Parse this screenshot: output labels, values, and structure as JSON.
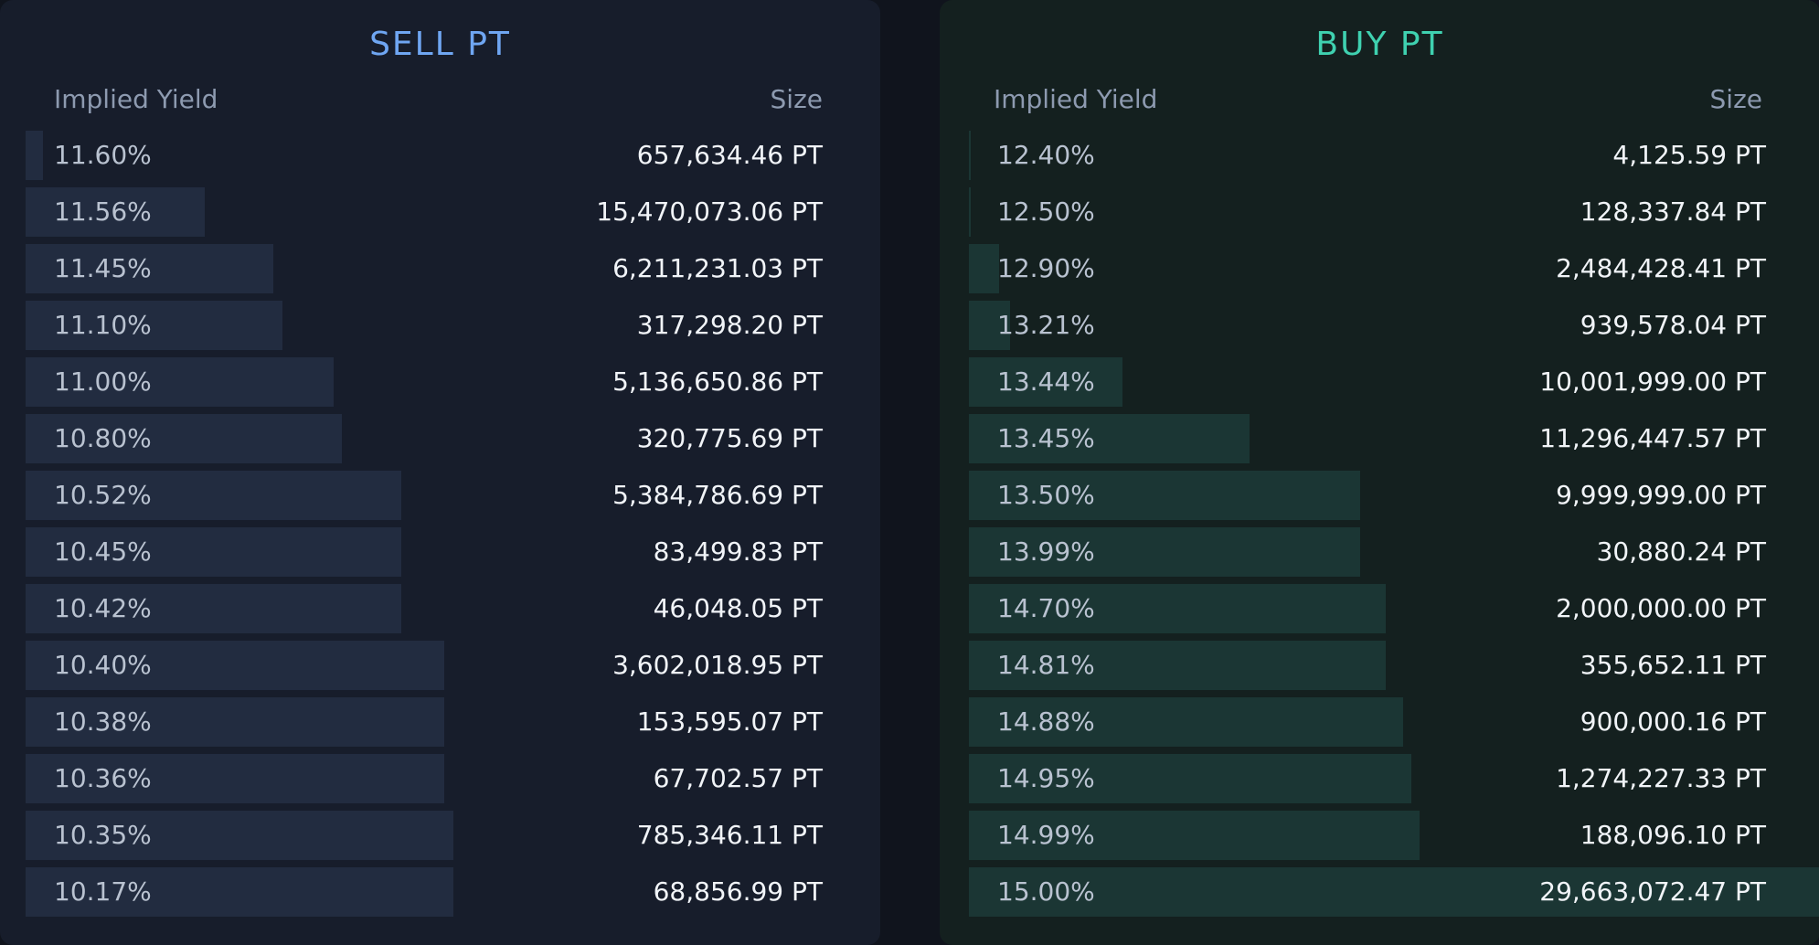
{
  "sell": {
    "title": "SELL PT",
    "col_yield": "Implied Yield",
    "col_size": "Size",
    "rows": [
      {
        "yield": "11.60%",
        "size": "657,634.46 PT",
        "depth": 0.02
      },
      {
        "yield": "11.56%",
        "size": "15,470,073.06 PT",
        "depth": 0.21
      },
      {
        "yield": "11.45%",
        "size": "6,211,231.03 PT",
        "depth": 0.29
      },
      {
        "yield": "11.10%",
        "size": "317,298.20 PT",
        "depth": 0.3
      },
      {
        "yield": "11.00%",
        "size": "5,136,650.86 PT",
        "depth": 0.36
      },
      {
        "yield": "10.80%",
        "size": "320,775.69 PT",
        "depth": 0.37
      },
      {
        "yield": "10.52%",
        "size": "5,384,786.69 PT",
        "depth": 0.44
      },
      {
        "yield": "10.45%",
        "size": "83,499.83 PT",
        "depth": 0.44
      },
      {
        "yield": "10.42%",
        "size": "46,048.05 PT",
        "depth": 0.44
      },
      {
        "yield": "10.40%",
        "size": "3,602,018.95 PT",
        "depth": 0.49
      },
      {
        "yield": "10.38%",
        "size": "153,595.07 PT",
        "depth": 0.49
      },
      {
        "yield": "10.36%",
        "size": "67,702.57 PT",
        "depth": 0.49
      },
      {
        "yield": "10.35%",
        "size": "785,346.11 PT",
        "depth": 0.5
      },
      {
        "yield": "10.17%",
        "size": "68,856.99 PT",
        "depth": 0.5
      }
    ]
  },
  "buy": {
    "title": "BUY PT",
    "col_yield": "Implied Yield",
    "col_size": "Size",
    "rows": [
      {
        "yield": "12.40%",
        "size": "4,125.59 PT",
        "depth": 0.001
      },
      {
        "yield": "12.50%",
        "size": "128,337.84 PT",
        "depth": 0.002
      },
      {
        "yield": "12.90%",
        "size": "2,484,428.41 PT",
        "depth": 0.035
      },
      {
        "yield": "13.21%",
        "size": "939,578.04 PT",
        "depth": 0.048
      },
      {
        "yield": "13.44%",
        "size": "10,001,999.00 PT",
        "depth": 0.18
      },
      {
        "yield": "13.45%",
        "size": "11,296,447.57 PT",
        "depth": 0.33
      },
      {
        "yield": "13.50%",
        "size": "9,999,999.00 PT",
        "depth": 0.46
      },
      {
        "yield": "13.99%",
        "size": "30,880.24 PT",
        "depth": 0.46
      },
      {
        "yield": "14.70%",
        "size": "2,000,000.00 PT",
        "depth": 0.49
      },
      {
        "yield": "14.81%",
        "size": "355,652.11 PT",
        "depth": 0.49
      },
      {
        "yield": "14.88%",
        "size": "900,000.16 PT",
        "depth": 0.51
      },
      {
        "yield": "14.95%",
        "size": "1,274,227.33 PT",
        "depth": 0.52
      },
      {
        "yield": "14.99%",
        "size": "188,096.10 PT",
        "depth": 0.53
      },
      {
        "yield": "15.00%",
        "size": "29,663,072.47 PT",
        "depth": 1.0
      }
    ]
  },
  "colors": {
    "sell_accent": "#6fa6f2",
    "buy_accent": "#3fd1b0",
    "sell_bar": "#222c40",
    "buy_bar": "#1b3634"
  }
}
